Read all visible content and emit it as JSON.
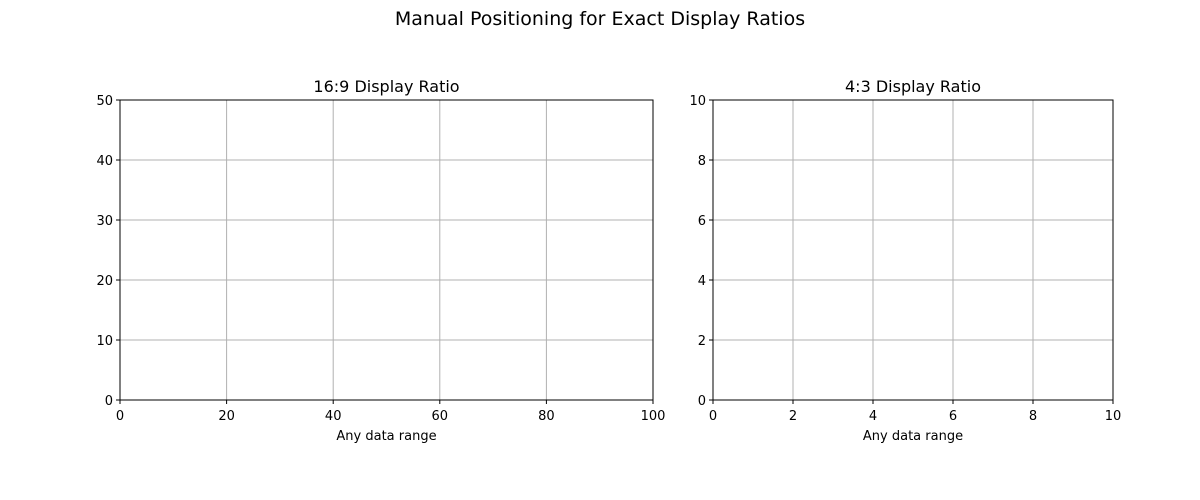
{
  "figure": {
    "suptitle": "Manual Positioning for Exact Display Ratios"
  },
  "chart_data": [
    {
      "type": "line",
      "title": "16:9 Display Ratio",
      "xlabel": "Any data range",
      "ylabel": "",
      "xlim": [
        0,
        100
      ],
      "ylim": [
        0,
        50
      ],
      "xticks": [
        0,
        20,
        40,
        60,
        80,
        100
      ],
      "yticks": [
        0,
        10,
        20,
        30,
        40,
        50
      ],
      "grid": true,
      "series": []
    },
    {
      "type": "line",
      "title": "4:3 Display Ratio",
      "xlabel": "Any data range",
      "ylabel": "",
      "xlim": [
        0,
        10
      ],
      "ylim": [
        0,
        10
      ],
      "xticks": [
        0,
        2,
        4,
        6,
        8,
        10
      ],
      "yticks": [
        0,
        2,
        4,
        6,
        8,
        10
      ],
      "grid": true,
      "series": []
    }
  ]
}
